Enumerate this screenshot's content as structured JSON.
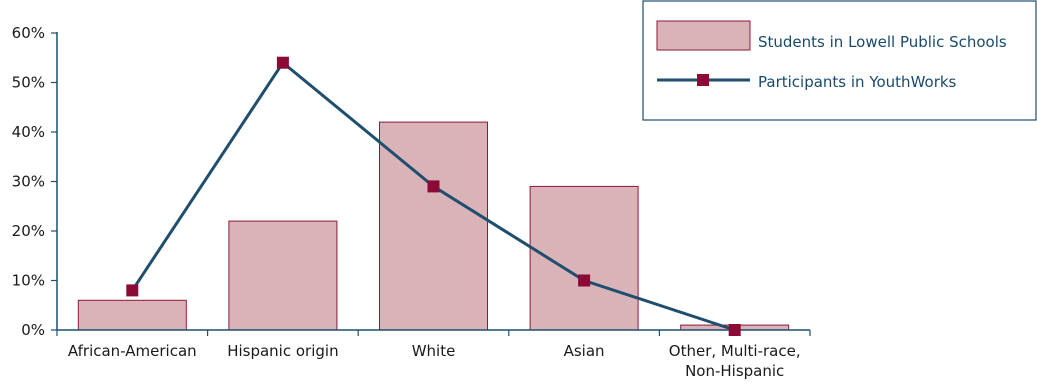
{
  "chart_data": {
    "type": "bar",
    "categories": [
      [
        "African-American"
      ],
      [
        "Hispanic origin"
      ],
      [
        "White"
      ],
      [
        "Asian"
      ],
      [
        "Other, Multi-race,",
        "Non-Hispanic"
      ]
    ],
    "series": [
      {
        "name": "Students in Lowell Public Schools",
        "type": "bar",
        "values": [
          6,
          22,
          42,
          29,
          1
        ],
        "color": "#d9b3b8",
        "stroke": "#8b1a3a"
      },
      {
        "name": "Participants in YouthWorks",
        "type": "line",
        "values": [
          8,
          54,
          29,
          10,
          0
        ],
        "color": "#1f4e6e",
        "marker_color": "#8b0a36"
      }
    ],
    "yticks": [
      "0%",
      "10%",
      "20%",
      "30%",
      "40%",
      "50%",
      "60%"
    ],
    "ylim": [
      0,
      60
    ],
    "title": "",
    "xlabel": "",
    "ylabel": "",
    "legend_position": "top-right",
    "grid": false,
    "axis_color": "#1f4e6e"
  }
}
